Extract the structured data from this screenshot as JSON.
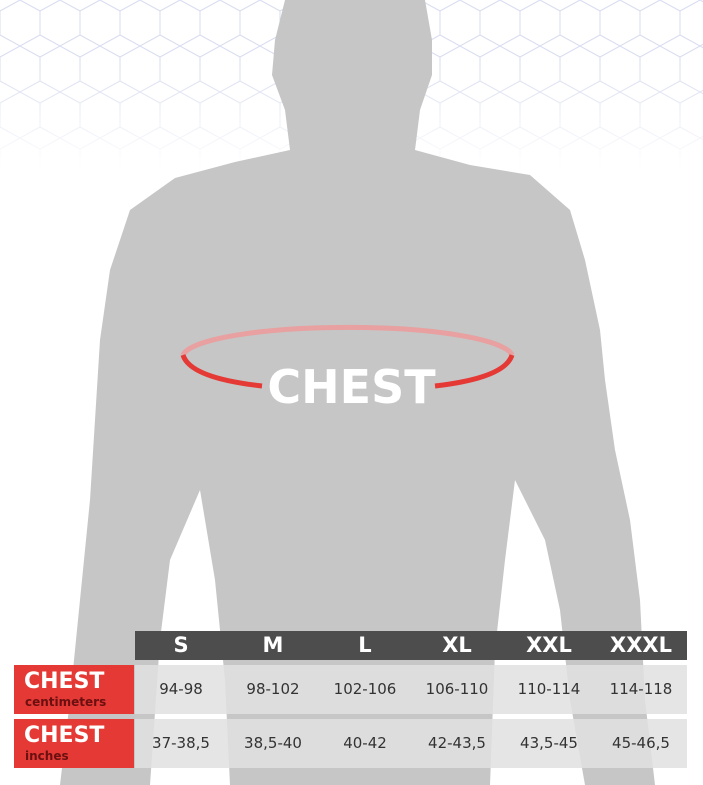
{
  "figure_label": "CHEST",
  "colors": {
    "accent": "#e53935",
    "header": "#4d4d4d",
    "silhouette": "#c8c8c8"
  },
  "table": {
    "sizes": [
      "S",
      "M",
      "L",
      "XL",
      "XXL",
      "XXXL"
    ],
    "rows": [
      {
        "label": "CHEST",
        "unit": "centimeters",
        "values": [
          "94-98",
          "98-102",
          "102-106",
          "106-110",
          "110-114",
          "114-118"
        ]
      },
      {
        "label": "CHEST",
        "unit": "inches",
        "values": [
          "37-38,5",
          "38,5-40",
          "40-42",
          "42-43,5",
          "43,5-45",
          "45-46,5"
        ]
      }
    ]
  }
}
